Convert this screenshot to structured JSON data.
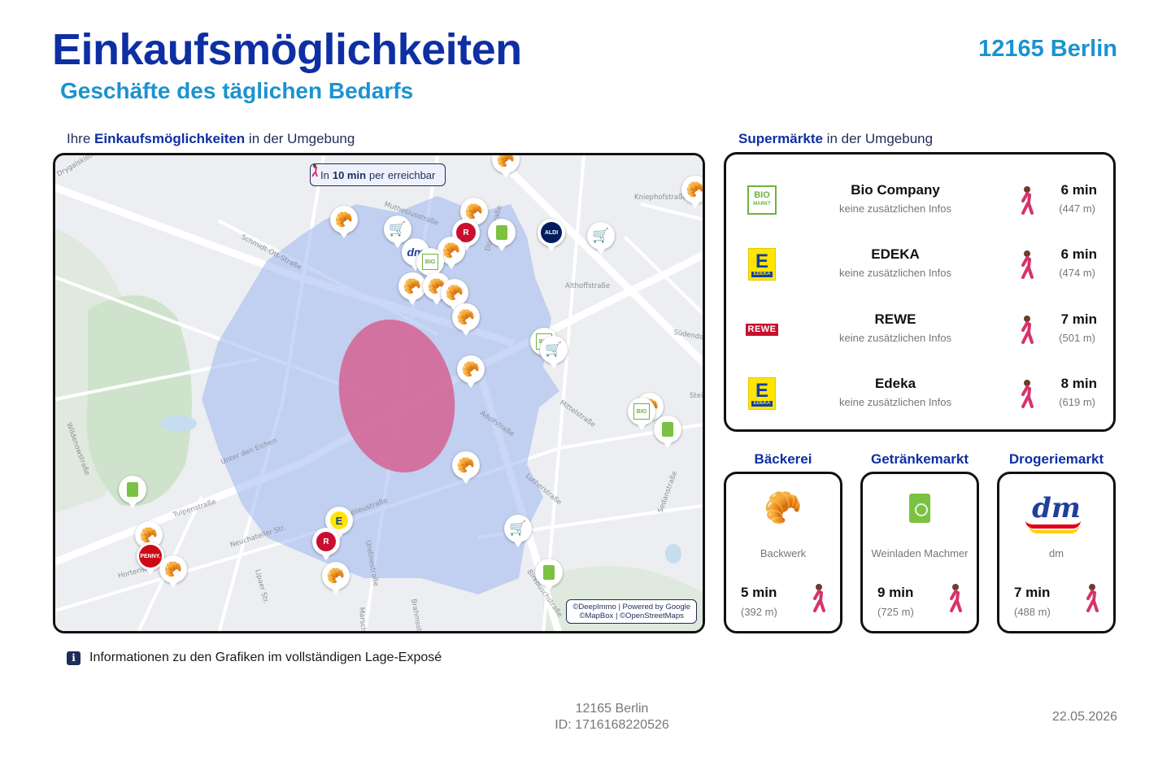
{
  "header": {
    "title": "Einkaufsmöglichkeiten",
    "subtitle": "Geschäfte des täglichen Bedarfs",
    "city": "12165 Berlin"
  },
  "map_section": {
    "label_prefix": "Ihre ",
    "label_bold": "Einkaufsmöglichkeiten",
    "label_suffix": " in der Umgebung",
    "badge_prefix": "In ",
    "badge_bold": "10 min",
    "badge_mid": " per ",
    "badge_suffix": " erreichbar",
    "credit_line1": "©DeepImmo | Powered by Google",
    "credit_line2": "©MapBox | ©OpenStreetMaps",
    "street_labels": [
      "Drygalskistr.",
      "Schmidt-Ott-Straße",
      "Muthesiusstraße",
      "Kniephofstraße",
      "Althoffstraße",
      "Südendstr.",
      "Mittelstraße",
      "Adolfstraße",
      "Lutherstraße",
      "Wildenowstraße",
      "Unter den Eichen",
      "Gélieustraße",
      "Tulpenstraße",
      "Neuchateller Str.",
      "Hortensienstr.",
      "Lipaer Str.",
      "Undinestraße",
      "Marschnerstr.",
      "Brahmsstr.",
      "Birkbuschstraße",
      "Sedanstraße",
      "Düppelstraße",
      "Stein"
    ]
  },
  "supermarkets_section": {
    "label_bold": "Supermärkte",
    "label_suffix": " in der Umgebung",
    "items": [
      {
        "name": "Bio Company",
        "info": "keine zusätzlichen Infos",
        "minutes": "6 min",
        "distance": "(447 m)",
        "logo": "bio-company-logo"
      },
      {
        "name": "EDEKA",
        "info": "keine zusätzlichen Infos",
        "minutes": "6 min",
        "distance": "(474 m)",
        "logo": "edeka-logo"
      },
      {
        "name": "REWE",
        "info": "keine zusätzlichen Infos",
        "minutes": "7 min",
        "distance": "(501 m)",
        "logo": "rewe-logo"
      },
      {
        "name": "Edeka",
        "info": "keine zusätzlichen Infos",
        "minutes": "8 min",
        "distance": "(619 m)",
        "logo": "edeka-logo"
      }
    ],
    "logo_text": {
      "bio_top": "BIO",
      "bio_bottom": "MARKT",
      "edeka_letter": "E",
      "edeka_word": "EDEKA",
      "rewe_word": "REWE"
    }
  },
  "categories": [
    {
      "title": "Bäckerei",
      "name": "Backwerk",
      "minutes": "5 min",
      "distance": "(392 m)",
      "icon": "croissant-icon"
    },
    {
      "title": "Getränkemarkt",
      "name": "Weinladen Machmer",
      "minutes": "9 min",
      "distance": "(725 m)",
      "icon": "drink-carton-icon"
    },
    {
      "title": "Drogeriemarkt",
      "name": "dm",
      "minutes": "7 min",
      "distance": "(488 m)",
      "icon": "dm-logo",
      "logo_text": "dm"
    }
  ],
  "info": {
    "icon_glyph": "i",
    "text": "Informationen zu den Grafiken im vollständigen Lage-Exposé"
  },
  "footer": {
    "city": "12165 Berlin",
    "id": "ID: 1716168220526",
    "date": "22.05.2026"
  },
  "pin_labels": {
    "rewe": "R",
    "penny": "PENNY.",
    "aldi": "ALDI",
    "bio": "BIO",
    "dm": "dm",
    "edeka": "E"
  },
  "colors": {
    "title": "#0e2fa3",
    "accent": "#1b93d0",
    "isochrone": "#9fb6ef",
    "center_area": "#d65a8c",
    "text_muted": "#777777"
  }
}
